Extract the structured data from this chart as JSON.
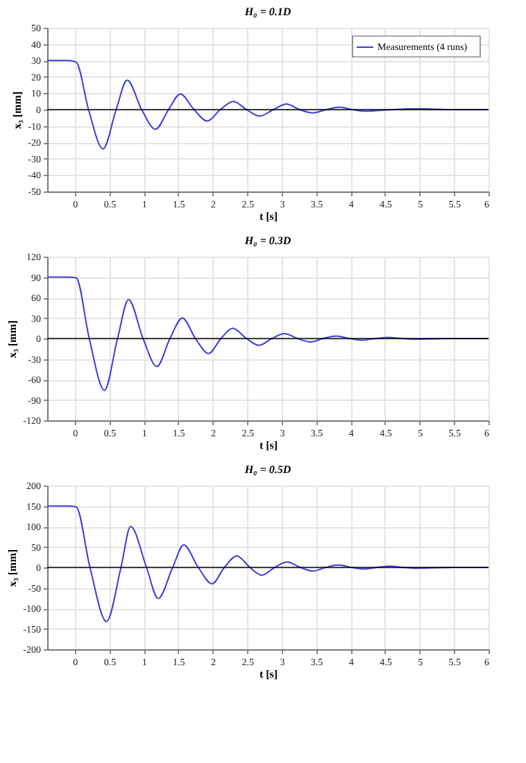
{
  "chart_data": [
    {
      "type": "line",
      "title": "H₀ = 0.1D",
      "xlabel": "t [s]",
      "ylabel": "x₃ [mm]",
      "xlim": [
        -0.4,
        6
      ],
      "xticks": [
        0,
        0.5,
        1,
        1.5,
        2,
        2.5,
        3,
        3.5,
        4,
        4.5,
        5,
        5.5,
        6
      ],
      "ylim": [
        -50,
        50
      ],
      "yticks": [
        -50,
        -40,
        -30,
        -20,
        -10,
        0,
        10,
        20,
        30,
        40,
        50
      ],
      "grid": true,
      "legend": "top right",
      "ref_lines": [
        {
          "axis": "y",
          "value": 0,
          "color": "#000000"
        }
      ],
      "series": [
        {
          "name": "Measurements (4 runs)",
          "color": "#3b3bd6",
          "x": [
            -0.4,
            -0.1,
            0.02,
            0.2,
            0.41,
            0.6,
            0.76,
            0.97,
            1.17,
            1.36,
            1.53,
            1.73,
            1.92,
            2.11,
            2.3,
            2.49,
            2.68,
            2.88,
            3.07,
            3.26,
            3.45,
            3.65,
            3.84,
            4.03,
            4.22,
            4.6,
            5,
            5.5,
            6
          ],
          "values": [
            30,
            30,
            29,
            0,
            -24,
            0,
            18,
            0,
            -12,
            0,
            9.5,
            0,
            -7,
            0,
            5,
            0,
            -4,
            0,
            3.4,
            0,
            -2,
            0,
            1.5,
            0,
            -1,
            0,
            0.5,
            0,
            0
          ]
        }
      ]
    },
    {
      "type": "line",
      "title": "H₀ = 0.3D",
      "xlabel": "t [s]",
      "ylabel": "x₃ [mm]",
      "xlim": [
        -0.4,
        6
      ],
      "xticks": [
        0,
        0.5,
        1,
        1.5,
        2,
        2.5,
        3,
        3.5,
        4,
        4.5,
        5,
        5.5,
        6
      ],
      "ylim": [
        -120,
        120
      ],
      "yticks": [
        -120,
        -90,
        -60,
        -30,
        0,
        30,
        60,
        90,
        120
      ],
      "grid": true,
      "ref_lines": [
        {
          "axis": "y",
          "value": 0,
          "color": "#000000"
        }
      ],
      "series": [
        {
          "color": "#3b3bd6",
          "x": [
            -0.4,
            -0.1,
            0.02,
            0.21,
            0.43,
            0.62,
            0.78,
            0.99,
            1.19,
            1.38,
            1.56,
            1.75,
            1.94,
            2.12,
            2.29,
            2.49,
            2.67,
            2.86,
            3.04,
            3.23,
            3.42,
            3.6,
            3.79,
            3.98,
            4.17,
            4.36,
            4.55,
            4.74,
            4.93,
            5.5,
            6
          ],
          "values": [
            90,
            90,
            89,
            0,
            -76,
            0,
            57,
            0,
            -41,
            0,
            30,
            0,
            -22,
            0,
            15,
            0,
            -10,
            0,
            7,
            0,
            -5,
            0,
            3.5,
            0,
            -2.5,
            0,
            1.5,
            0,
            -1,
            0,
            0
          ]
        }
      ]
    },
    {
      "type": "line",
      "title": "H₀ = 0.5D",
      "xlabel": "t [s]",
      "ylabel": "x₃ [mm]",
      "xlim": [
        -0.4,
        6
      ],
      "xticks": [
        0,
        0.5,
        1,
        1.5,
        2,
        2.5,
        3,
        3.5,
        4,
        4.5,
        5,
        5.5,
        6
      ],
      "ylim": [
        -200,
        200
      ],
      "yticks": [
        -200,
        -150,
        -100,
        -50,
        0,
        50,
        100,
        150,
        200
      ],
      "grid": true,
      "ref_lines": [
        {
          "axis": "y",
          "value": 0,
          "color": "#000000"
        }
      ],
      "series": [
        {
          "color": "#3b3bd6",
          "x": [
            -0.4,
            -0.1,
            0.02,
            0.22,
            0.46,
            0.67,
            0.81,
            1.04,
            1.21,
            1.42,
            1.58,
            1.79,
            1.99,
            2.17,
            2.35,
            2.54,
            2.71,
            2.9,
            3.08,
            3.27,
            3.45,
            3.64,
            3.82,
            4.01,
            4.2,
            4.38,
            4.57,
            4.76,
            4.95,
            5.5,
            6
          ],
          "values": [
            150,
            150,
            148,
            0,
            -132,
            0,
            100,
            0,
            -76,
            0,
            55,
            0,
            -40,
            0,
            28,
            0,
            -19,
            0,
            13,
            0,
            -9,
            0,
            6,
            0,
            -4,
            0,
            3,
            0,
            -2,
            0,
            0
          ]
        }
      ]
    }
  ]
}
